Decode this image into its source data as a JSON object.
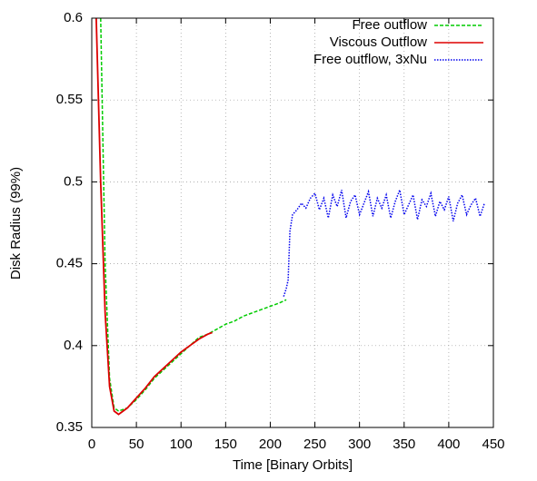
{
  "chart_data": {
    "type": "line",
    "x_label": "Time [Binary Orbits]",
    "y_label": "Disk Radius (99%)",
    "xlim": [
      0,
      450
    ],
    "xticks": [
      0,
      50,
      100,
      150,
      200,
      250,
      300,
      350,
      400,
      450
    ],
    "ylim": [
      0.35,
      0.6
    ],
    "yticks": [
      0.35,
      0.4,
      0.45,
      0.5,
      0.55,
      0.6
    ],
    "grid": true,
    "legend": "upper right",
    "series": [
      {
        "name": "Free outflow",
        "color": "#00cc00",
        "dash": "dashed",
        "x": [
          10,
          15,
          20,
          25,
          30,
          40,
          50,
          60,
          70,
          80,
          90,
          100,
          110,
          120,
          130,
          140,
          150,
          160,
          170,
          180,
          190,
          200,
          210,
          218
        ],
        "values": [
          0.6,
          0.45,
          0.38,
          0.362,
          0.36,
          0.362,
          0.367,
          0.373,
          0.38,
          0.385,
          0.39,
          0.395,
          0.4,
          0.405,
          0.407,
          0.41,
          0.413,
          0.415,
          0.418,
          0.42,
          0.422,
          0.424,
          0.426,
          0.428
        ]
      },
      {
        "name": "Viscous Outflow",
        "color": "#dd0000",
        "dash": "solid",
        "x": [
          5,
          10,
          15,
          20,
          25,
          30,
          40,
          50,
          60,
          70,
          80,
          90,
          100,
          110,
          120,
          130,
          135
        ],
        "values": [
          0.6,
          0.5,
          0.42,
          0.375,
          0.36,
          0.358,
          0.362,
          0.368,
          0.374,
          0.381,
          0.386,
          0.391,
          0.396,
          0.4,
          0.404,
          0.407,
          0.408
        ]
      },
      {
        "name": "Free outflow, 3xNu",
        "color": "#0000ee",
        "dash": "dotted",
        "x": [
          215,
          218,
          220,
          222,
          225,
          230,
          235,
          240,
          245,
          250,
          255,
          260,
          265,
          270,
          275,
          280,
          285,
          290,
          295,
          300,
          305,
          310,
          315,
          320,
          325,
          330,
          335,
          340,
          345,
          350,
          355,
          360,
          365,
          370,
          375,
          380,
          385,
          390,
          395,
          400,
          405,
          410,
          415,
          420,
          425,
          430,
          435,
          440
        ],
        "values": [
          0.43,
          0.435,
          0.44,
          0.47,
          0.48,
          0.483,
          0.487,
          0.484,
          0.49,
          0.493,
          0.483,
          0.49,
          0.478,
          0.492,
          0.485,
          0.495,
          0.478,
          0.488,
          0.492,
          0.48,
          0.487,
          0.494,
          0.479,
          0.49,
          0.484,
          0.492,
          0.478,
          0.488,
          0.495,
          0.48,
          0.486,
          0.492,
          0.477,
          0.489,
          0.485,
          0.493,
          0.479,
          0.488,
          0.483,
          0.491,
          0.476,
          0.487,
          0.492,
          0.48,
          0.486,
          0.49,
          0.479,
          0.487
        ]
      }
    ]
  }
}
